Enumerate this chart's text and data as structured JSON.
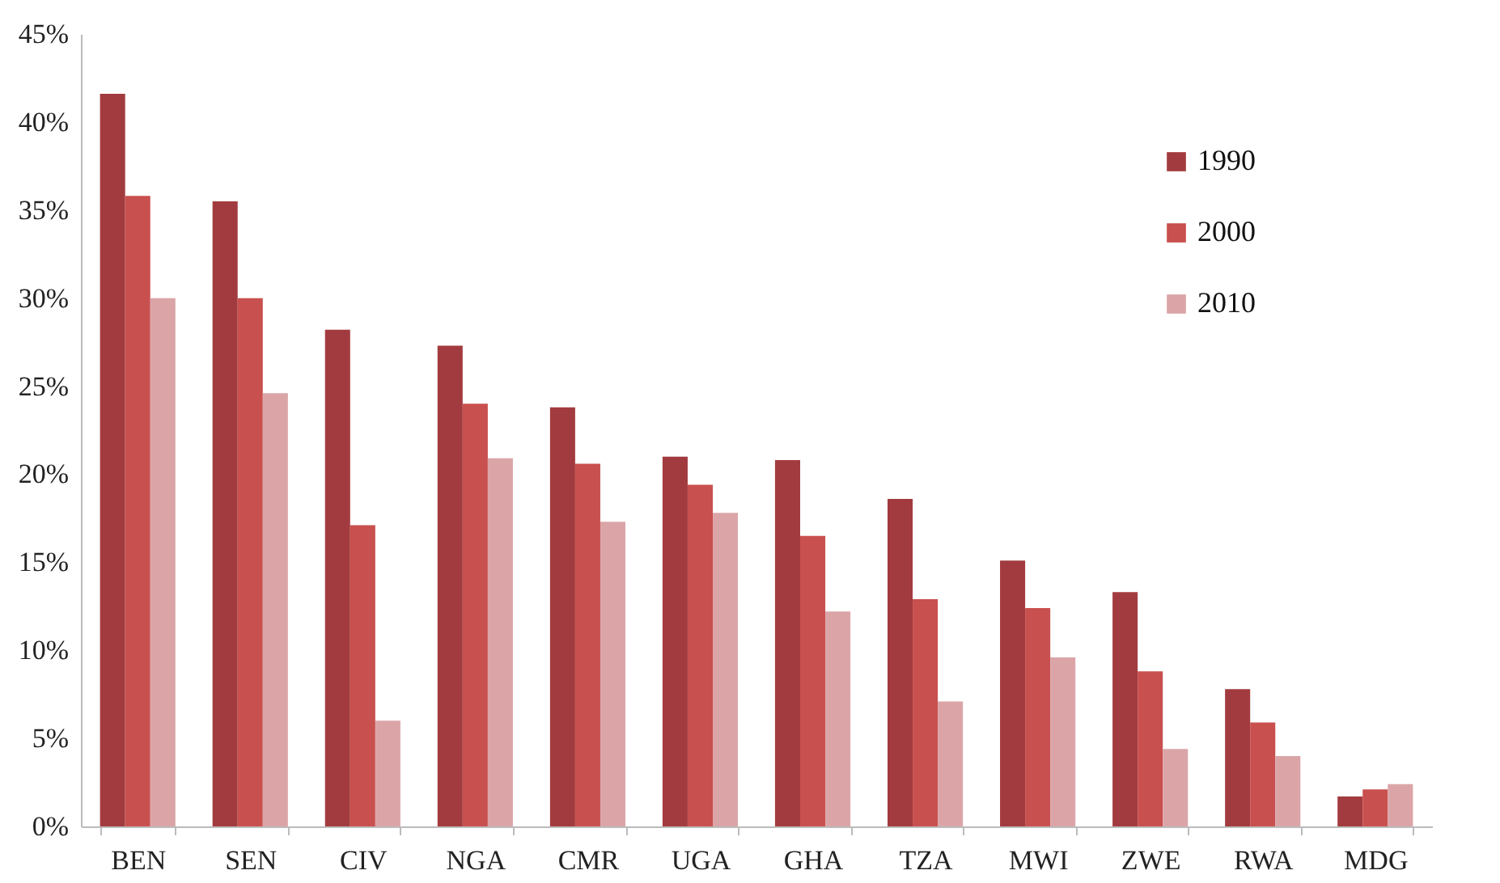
{
  "chart_data": {
    "type": "bar",
    "categories": [
      "BEN",
      "SEN",
      "CIV",
      "NGA",
      "CMR",
      "UGA",
      "GHA",
      "TZA",
      "MWI",
      "ZWE",
      "RWA",
      "MDG"
    ],
    "series": [
      {
        "name": "1990",
        "color": "#a23b3f",
        "values": [
          41.6,
          35.5,
          28.2,
          27.3,
          23.8,
          21.0,
          20.8,
          18.6,
          15.1,
          13.3,
          7.8,
          1.7
        ]
      },
      {
        "name": "2000",
        "color": "#c8504e",
        "values": [
          35.8,
          30.0,
          17.1,
          24.0,
          20.6,
          19.4,
          16.5,
          12.9,
          12.4,
          8.8,
          5.9,
          2.1
        ]
      },
      {
        "name": "2010",
        "color": "#dba5a8",
        "values": [
          30.0,
          24.6,
          6.0,
          20.9,
          17.3,
          17.8,
          12.2,
          7.1,
          9.6,
          4.4,
          4.0,
          2.4
        ]
      }
    ],
    "ylim": [
      0,
      45
    ],
    "yticks": [
      {
        "value": 0,
        "label": "0%"
      },
      {
        "value": 5,
        "label": "5%"
      },
      {
        "value": 10,
        "label": "10%"
      },
      {
        "value": 15,
        "label": "15%"
      },
      {
        "value": 20,
        "label": "20%"
      },
      {
        "value": 25,
        "label": "25%"
      },
      {
        "value": 30,
        "label": "30%"
      },
      {
        "value": 35,
        "label": "35%"
      },
      {
        "value": 40,
        "label": "40%"
      },
      {
        "value": 45,
        "label": "45%"
      }
    ],
    "grid": false,
    "legend": "top right"
  }
}
